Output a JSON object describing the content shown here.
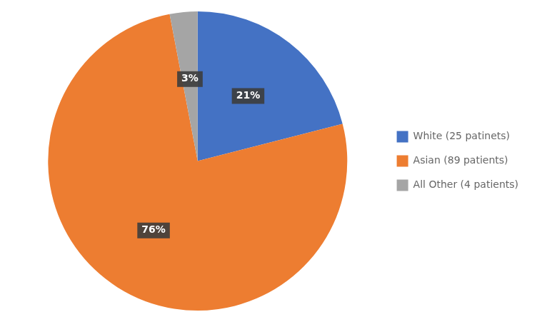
{
  "chart_data": {
    "type": "pie",
    "categories": [
      "White (25 patinets)",
      "Asian (89 patients)",
      "All Other (4 patients)"
    ],
    "values": [
      21,
      76,
      3
    ],
    "value_labels": [
      "21%",
      "76%",
      "3%"
    ],
    "colors": [
      "#4472C4",
      "#ED7D31",
      "#A5A5A5"
    ],
    "data_labels": true,
    "legend": "right"
  }
}
